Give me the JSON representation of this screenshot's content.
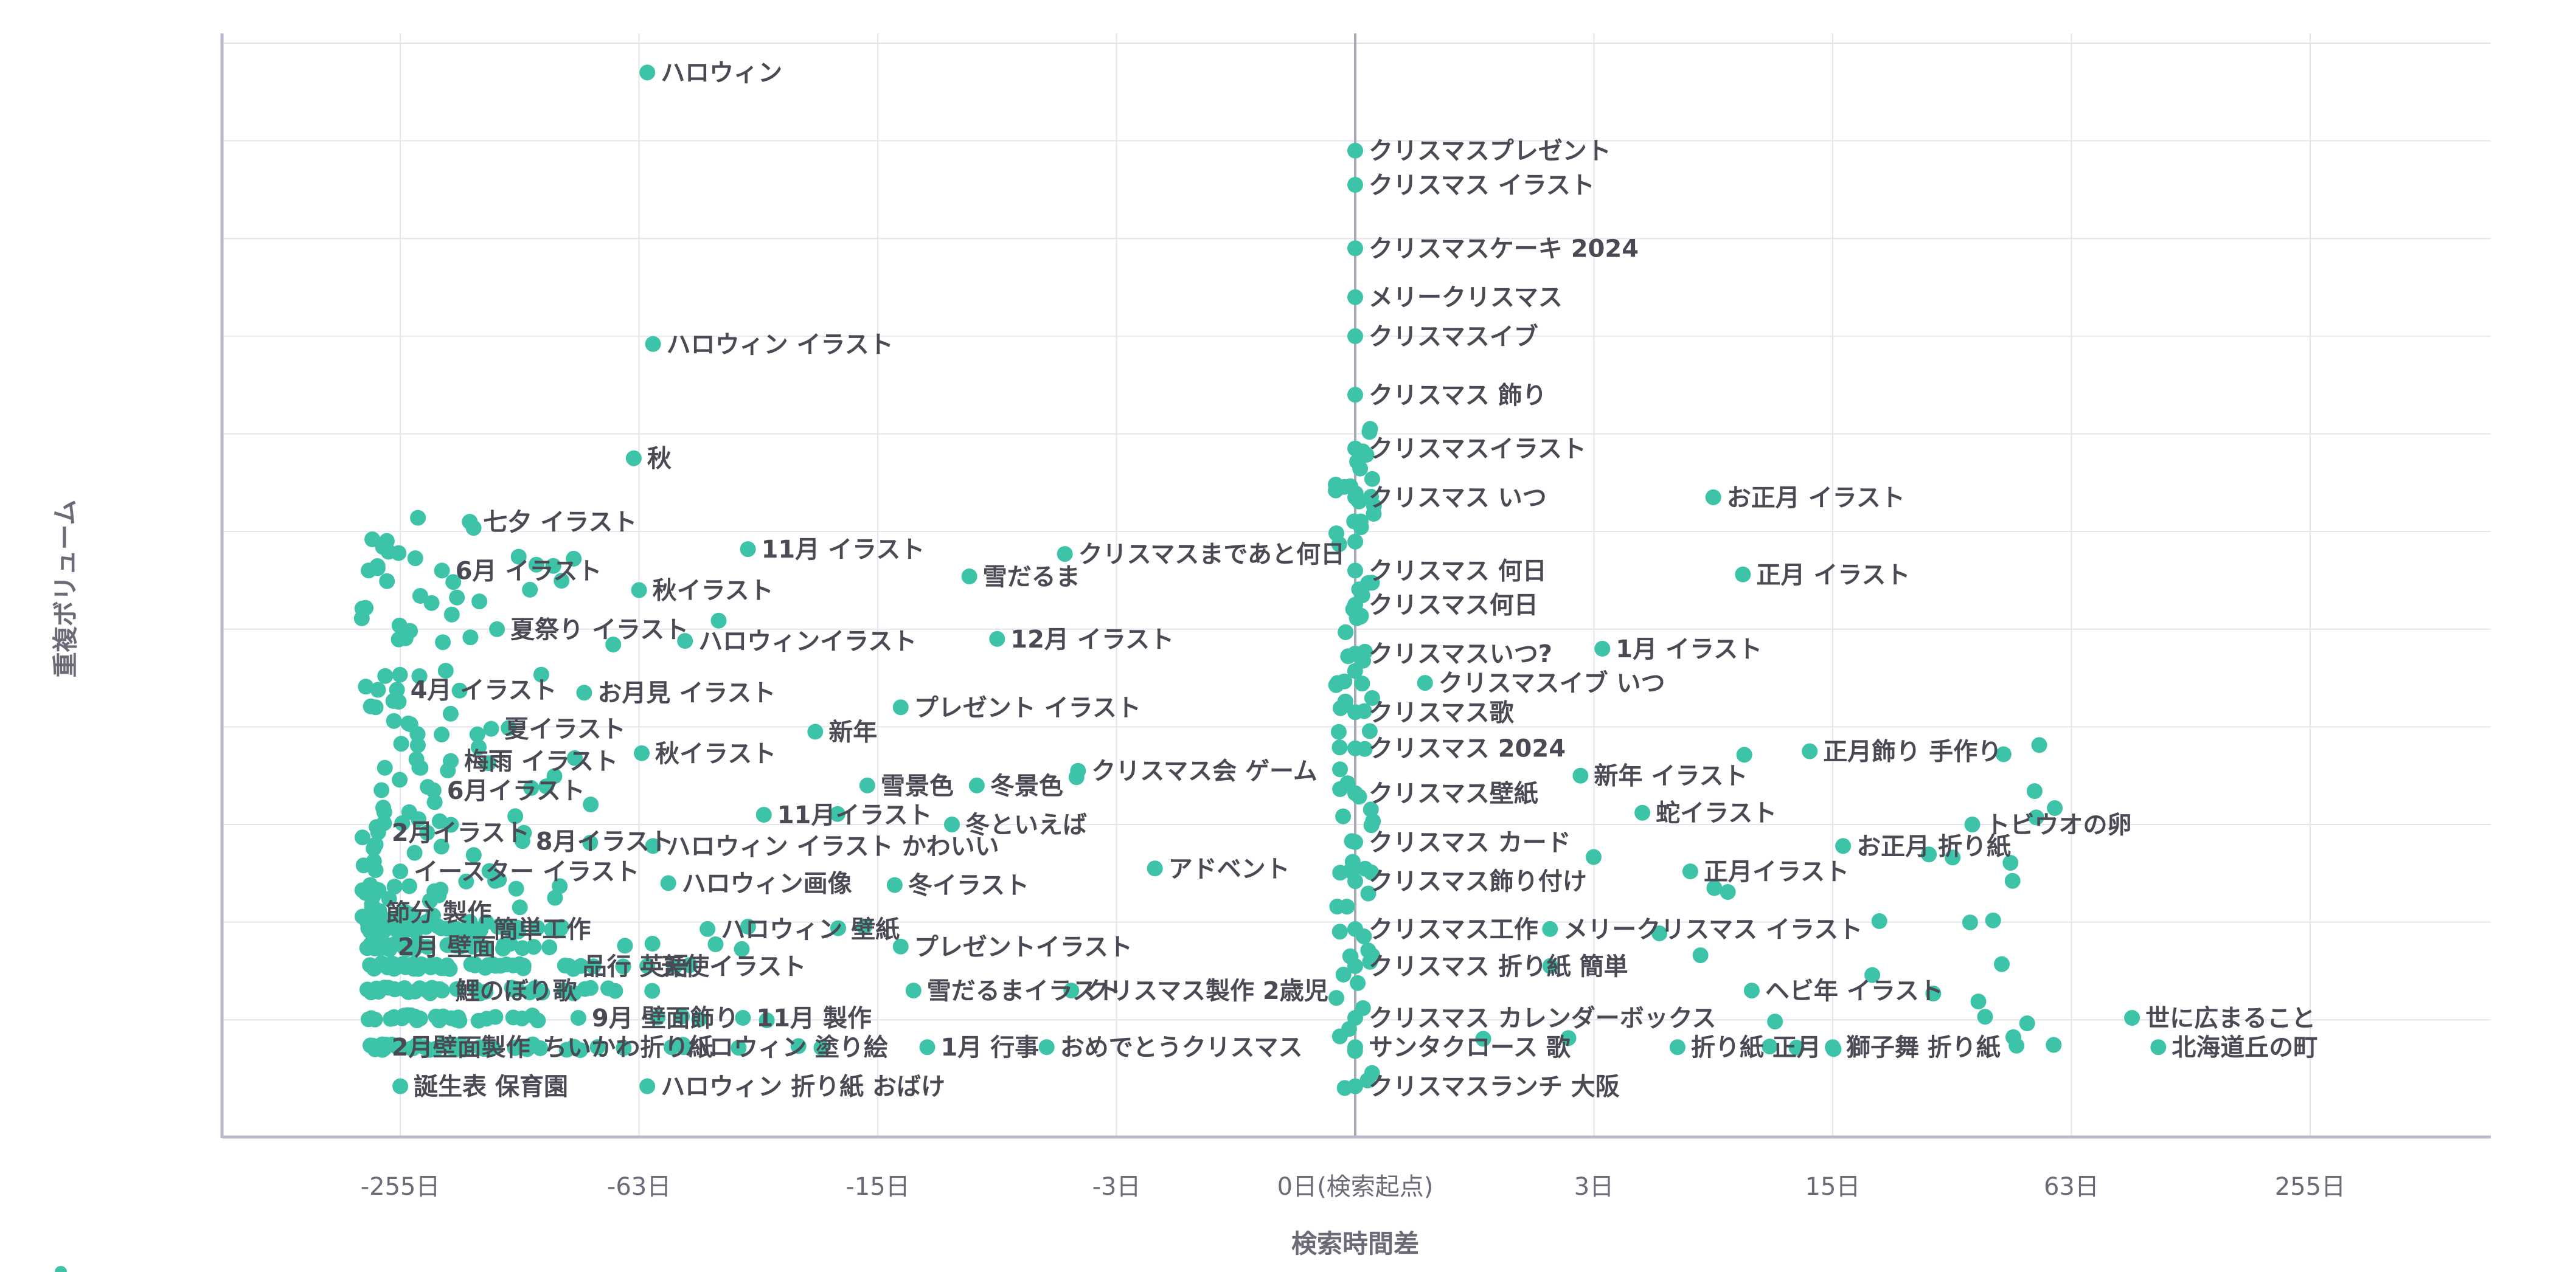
{
  "chart_data": {
    "type": "scatter",
    "title": "",
    "xlabel": "検索時間差",
    "ylabel": "重複ボリューム",
    "x_scale": "symlog2",
    "xlim": [
      -500,
      500
    ],
    "x_ticks": [
      "-255日",
      "-63日",
      "-15日",
      "-3日",
      "0日(検索起点)",
      "3日",
      "15日",
      "63日",
      "255日"
    ],
    "x_tick_values": [
      -255,
      -63,
      -15,
      -3,
      0,
      3,
      15,
      63,
      255
    ],
    "ylim": [
      0,
      11.3
    ],
    "y_grid_values": [
      1.2,
      2.2,
      3.2,
      4.2,
      5.2,
      6.2,
      7.2,
      8.2,
      9.2,
      10.2,
      11.2
    ],
    "y_tick_labels_visible": false,
    "grid": true,
    "marker_color": "#3cc3a8",
    "axis_color": "#b9b9cc",
    "grid_color": "#e4e4ec",
    "labeled_points": [
      {
        "label": "ハロウィン",
        "x": -60,
        "y": 10.9
      },
      {
        "label": "クリスマスプレゼント",
        "x": 0,
        "y": 10.1
      },
      {
        "label": "クリスマス イラスト",
        "x": 0,
        "y": 9.75
      },
      {
        "label": "クリスマスケーキ 2024",
        "x": 0,
        "y": 9.1
      },
      {
        "label": "メリークリスマス",
        "x": 0,
        "y": 8.6
      },
      {
        "label": "ハロウィン イラスト",
        "x": -58,
        "y": 8.12
      },
      {
        "label": "クリスマスイブ",
        "x": 0,
        "y": 8.2
      },
      {
        "label": "クリスマス 飾り",
        "x": 0,
        "y": 7.6
      },
      {
        "label": "秋",
        "x": -65,
        "y": 6.95
      },
      {
        "label": "クリスマスイラスト",
        "x": 0,
        "y": 7.05
      },
      {
        "label": "クリスマス いつ",
        "x": 0,
        "y": 6.55
      },
      {
        "label": "お正月 イラスト",
        "x": 7,
        "y": 6.55
      },
      {
        "label": "七夕 イラスト",
        "x": -170,
        "y": 6.3
      },
      {
        "label": "11月 イラスト",
        "x": -33,
        "y": 6.02
      },
      {
        "label": "クリスマスまであと何日",
        "x": -4.4,
        "y": 5.97
      },
      {
        "label": "6月 イラスト",
        "x": -200,
        "y": 5.8
      },
      {
        "label": "雪だるま",
        "x": -8.4,
        "y": 5.74
      },
      {
        "label": "クリスマス 何日",
        "x": 0,
        "y": 5.8
      },
      {
        "label": "正月 イラスト",
        "x": 8.5,
        "y": 5.76
      },
      {
        "label": "秋イラスト",
        "x": -63,
        "y": 5.6
      },
      {
        "label": "クリスマス何日",
        "x": 0,
        "y": 5.45
      },
      {
        "label": "夏祭り イラスト",
        "x": -145,
        "y": 5.2
      },
      {
        "label": "ハロウィンイラスト",
        "x": -48,
        "y": 5.08
      },
      {
        "label": "12月 イラスト",
        "x": -7,
        "y": 5.1
      },
      {
        "label": "クリスマスいつ?",
        "x": 0,
        "y": 4.95
      },
      {
        "label": "1月 イラスト",
        "x": 3.2,
        "y": 5.0
      },
      {
        "label": "4月 イラスト",
        "x": -260,
        "y": 4.58
      },
      {
        "label": "お月見 イラスト",
        "x": -87,
        "y": 4.55
      },
      {
        "label": "クリスマスイブ いつ",
        "x": 0.5,
        "y": 4.65
      },
      {
        "label": "プレゼント イラスト",
        "x": -13,
        "y": 4.4
      },
      {
        "label": "夏イラスト",
        "x": -150,
        "y": 4.18
      },
      {
        "label": "新年",
        "x": -22,
        "y": 4.15
      },
      {
        "label": "クリスマス歌",
        "x": 0,
        "y": 4.35
      },
      {
        "label": "梅雨 イラスト",
        "x": -190,
        "y": 3.85
      },
      {
        "label": "秋イラスト",
        "x": -62,
        "y": 3.93
      },
      {
        "label": "クリスマス 2024",
        "x": 0,
        "y": 3.98
      },
      {
        "label": "正月飾り 手作り",
        "x": 13,
        "y": 3.95
      },
      {
        "label": "クリスマス会 ゲーム",
        "x": -4,
        "y": 3.75
      },
      {
        "label": "新年 イラスト",
        "x": 2.7,
        "y": 3.7
      },
      {
        "label": "6月イラスト",
        "x": -210,
        "y": 3.55
      },
      {
        "label": "雪景色",
        "x": -16,
        "y": 3.6
      },
      {
        "label": "冬景色",
        "x": -8,
        "y": 3.6
      },
      {
        "label": "クリスマス壁紙",
        "x": 0,
        "y": 3.52
      },
      {
        "label": "11月イラスト",
        "x": -30,
        "y": 3.3
      },
      {
        "label": "蛇イラスト",
        "x": 4.3,
        "y": 3.32
      },
      {
        "label": "冬といえば",
        "x": -9.4,
        "y": 3.2
      },
      {
        "label": "トビウオの卵",
        "x": 35,
        "y": 3.2
      },
      {
        "label": "2月イラスト",
        "x": -290,
        "y": 3.12
      },
      {
        "label": "8月イラスト",
        "x": -125,
        "y": 3.03
      },
      {
        "label": "ハロウィン イラスト かわいい",
        "x": -58,
        "y": 2.98
      },
      {
        "label": "お正月 折り紙",
        "x": 16,
        "y": 2.98
      },
      {
        "label": "クリスマス カード",
        "x": 0,
        "y": 3.02
      },
      {
        "label": "イースター イラスト",
        "x": -255,
        "y": 2.72
      },
      {
        "label": "アドベント",
        "x": -2.2,
        "y": 2.75
      },
      {
        "label": "正月イラスト",
        "x": 6,
        "y": 2.72
      },
      {
        "label": "ハロウィン画像",
        "x": -53,
        "y": 2.6
      },
      {
        "label": "冬イラスト",
        "x": -13.5,
        "y": 2.58
      },
      {
        "label": "クリスマス飾り付け",
        "x": 0,
        "y": 2.62
      },
      {
        "label": "節分 製作",
        "x": -300,
        "y": 2.3
      },
      {
        "label": "簡単工作",
        "x": -160,
        "y": 2.13
      },
      {
        "label": "ハロウィン 壁紙",
        "x": -42,
        "y": 2.13
      },
      {
        "label": "クリスマス工作",
        "x": 0,
        "y": 2.13
      },
      {
        "label": "メリークリスマス イラスト",
        "x": 2.1,
        "y": 2.13
      },
      {
        "label": "2月 壁面",
        "x": -280,
        "y": 1.95
      },
      {
        "label": "プレゼントイラスト",
        "x": -13,
        "y": 1.95
      },
      {
        "label": "品行 英語",
        "x": -95,
        "y": 1.75
      },
      {
        "label": "天使イラスト",
        "x": -60,
        "y": 1.75
      },
      {
        "label": "クリスマス 折り紙 簡単",
        "x": 0,
        "y": 1.75
      },
      {
        "label": "鯉のぼり歌",
        "x": -200,
        "y": 1.5
      },
      {
        "label": "雪だるまイラスト",
        "x": -12,
        "y": 1.5
      },
      {
        "label": "クリスマス製作 2歳児",
        "x": -4.2,
        "y": 1.5
      },
      {
        "label": "ヘビ年 イラスト",
        "x": 9,
        "y": 1.5
      },
      {
        "label": "9月 壁面飾り",
        "x": -90,
        "y": 1.22
      },
      {
        "label": "11月 製作",
        "x": -34,
        "y": 1.22
      },
      {
        "label": "クリスマス カレンダーボックス",
        "x": 0,
        "y": 1.22
      },
      {
        "label": "世に広まること",
        "x": 90,
        "y": 1.22
      },
      {
        "label": "2月壁面製作",
        "x": -290,
        "y": 0.92
      },
      {
        "label": "ちいかわ折り紙",
        "x": -120,
        "y": 0.92
      },
      {
        "label": "ハロウィン 塗り絵",
        "x": -52,
        "y": 0.92
      },
      {
        "label": "1月 行事",
        "x": -11,
        "y": 0.92
      },
      {
        "label": "おめでとうクリスマス",
        "x": -5,
        "y": 0.92
      },
      {
        "label": "サンタクロース 歌",
        "x": 0,
        "y": 0.92
      },
      {
        "label": "折り紙 正月",
        "x": 5.5,
        "y": 0.92
      },
      {
        "label": "獅子舞 折り紙",
        "x": 15,
        "y": 0.92
      },
      {
        "label": "北海道丘の町",
        "x": 105,
        "y": 0.92
      },
      {
        "label": "誕生表 保育園",
        "x": -255,
        "y": 0.52
      },
      {
        "label": "ハロウィン 折り紙 おばけ",
        "x": -60,
        "y": 0.52
      },
      {
        "label": "クリスマスランチ 大阪",
        "x": 0,
        "y": 0.52
      }
    ],
    "unlabeled_point_count": 520
  }
}
